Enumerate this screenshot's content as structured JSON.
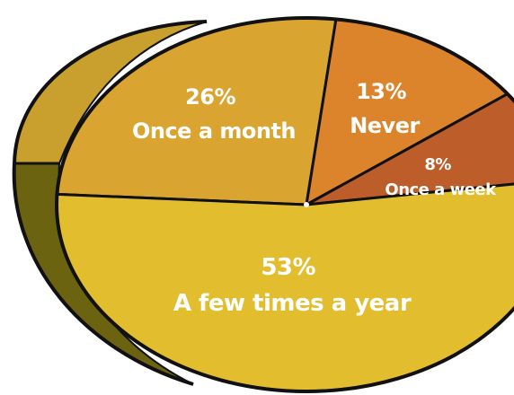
{
  "chart_data": {
    "type": "pie",
    "title": "",
    "slices": [
      {
        "pct_label": "26%",
        "name": "Once a month",
        "value": 26,
        "color": "#d9a42f"
      },
      {
        "pct_label": "13%",
        "name": "Never",
        "value": 13,
        "color": "#dc842c"
      },
      {
        "pct_label": "8%",
        "name": "Once a week",
        "value": 8,
        "color": "#bd5d2a"
      },
      {
        "pct_label": "53%",
        "name": "A few times a year",
        "value": 53,
        "color": "#e2bd2e"
      }
    ],
    "side_colors": [
      "#c9a02e",
      "#6b6310"
    ],
    "outline_color": "#111111",
    "legend": "none"
  }
}
